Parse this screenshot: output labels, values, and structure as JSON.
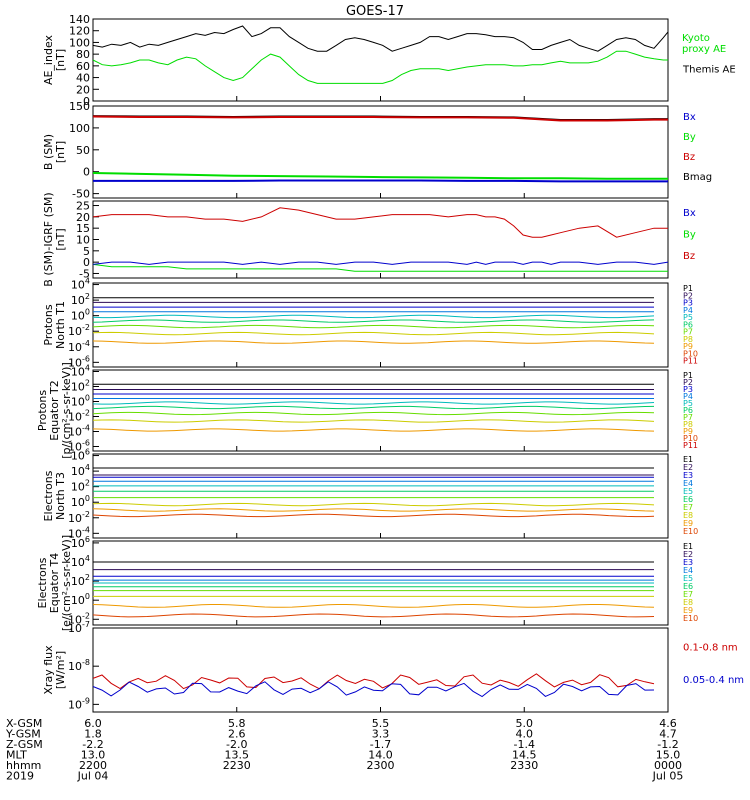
{
  "title": "GOES-17",
  "colors": {
    "black": "#000000",
    "green": "#00dd00",
    "red": "#cc0000",
    "blue": "#0000cc",
    "ch": [
      "#000000",
      "#2b0a55",
      "#0000cc",
      "#0077dd",
      "#00bbbb",
      "#00cc66",
      "#66dd00",
      "#cccc00",
      "#ee9900",
      "#dd4400",
      "#cc0000"
    ]
  },
  "chart_data": [
    {
      "panel": "ae",
      "type": "line",
      "ylabel": [
        "AE_index",
        "[nT]"
      ],
      "yticks": [
        0,
        20,
        40,
        60,
        80,
        100,
        120,
        140
      ],
      "ylim": [
        0,
        140
      ],
      "legend": [
        {
          "text": [
            "Kyoto",
            "proxy AE"
          ],
          "color": "#00dd00"
        },
        {
          "text": [
            "Themis AE"
          ],
          "color": "#000000"
        }
      ],
      "x": [
        0,
        10,
        20,
        30,
        40,
        50,
        60,
        70,
        80,
        90,
        100,
        110,
        120,
        130,
        140,
        150,
        160,
        170,
        180,
        190,
        200,
        210,
        220,
        230,
        240,
        250,
        260,
        270,
        280,
        290,
        300,
        310,
        320,
        330,
        340,
        350,
        360,
        370,
        380,
        390,
        400,
        410,
        420,
        430,
        440,
        450,
        460,
        470,
        480,
        490,
        500,
        510,
        520,
        530,
        540,
        550,
        560,
        570,
        580,
        590,
        600,
        610,
        615
      ],
      "series": [
        {
          "name": "Themis AE",
          "color": "#000000",
          "values": [
            95,
            92,
            97,
            95,
            100,
            92,
            97,
            95,
            100,
            105,
            110,
            115,
            112,
            117,
            115,
            122,
            128,
            110,
            115,
            125,
            125,
            110,
            100,
            90,
            85,
            85,
            95,
            105,
            108,
            105,
            100,
            95,
            85,
            90,
            95,
            100,
            110,
            110,
            105,
            110,
            115,
            115,
            113,
            110,
            110,
            108,
            100,
            88,
            88,
            95,
            100,
            105,
            95,
            90,
            85,
            95,
            105,
            108,
            105,
            95,
            90,
            108,
            118
          ]
        },
        {
          "name": "Kyoto proxy AE",
          "color": "#00dd00",
          "values": [
            70,
            62,
            60,
            62,
            65,
            70,
            70,
            65,
            62,
            70,
            75,
            72,
            60,
            50,
            40,
            35,
            40,
            55,
            70,
            80,
            75,
            60,
            45,
            35,
            30,
            30,
            30,
            30,
            30,
            30,
            30,
            30,
            35,
            45,
            52,
            55,
            55,
            55,
            52,
            55,
            58,
            60,
            62,
            62,
            62,
            60,
            60,
            62,
            62,
            65,
            68,
            65,
            65,
            65,
            68,
            75,
            85,
            85,
            80,
            75,
            72,
            70,
            70
          ]
        }
      ]
    },
    {
      "panel": "b",
      "type": "line",
      "ylabel": [
        "B (SM)",
        "[nT]"
      ],
      "yticks": [
        -50,
        0,
        50,
        100,
        150
      ],
      "ylim": [
        -60,
        150
      ],
      "legend": [
        {
          "text": [
            "Bx"
          ],
          "color": "#0000cc"
        },
        {
          "text": [
            "By"
          ],
          "color": "#00dd00"
        },
        {
          "text": [
            "Bz"
          ],
          "color": "#cc0000"
        },
        {
          "text": [
            "Bmag"
          ],
          "color": "#000000"
        }
      ],
      "x": [
        0,
        50,
        100,
        150,
        200,
        250,
        300,
        350,
        400,
        450,
        500,
        550,
        600,
        615
      ],
      "series": [
        {
          "name": "Bmag",
          "color": "#000000",
          "values": [
            127,
            126,
            126,
            125,
            126,
            126,
            126,
            125,
            125,
            124,
            118,
            118,
            120,
            120
          ]
        },
        {
          "name": "Bz",
          "color": "#cc0000",
          "values": [
            126,
            125,
            125,
            124,
            125,
            125,
            125,
            124,
            124,
            123,
            117,
            117,
            119,
            119
          ]
        },
        {
          "name": "By",
          "color": "#00dd00",
          "values": [
            -3,
            -5,
            -7,
            -9,
            -10,
            -11,
            -12,
            -13,
            -14,
            -15,
            -15,
            -16,
            -16,
            -16
          ]
        },
        {
          "name": "Bx",
          "color": "#0000cc",
          "values": [
            -21,
            -21,
            -21,
            -21,
            -20,
            -20,
            -20,
            -20,
            -21,
            -21,
            -22,
            -22,
            -22,
            -22
          ]
        }
      ]
    },
    {
      "panel": "bigrf",
      "type": "line",
      "ylabel": [
        "B (SM)-IGRF (SM)",
        "[nT]"
      ],
      "yticks": [
        -5,
        0,
        5,
        10,
        15,
        20,
        25
      ],
      "ylim": [
        -7,
        27
      ],
      "legend": [
        {
          "text": [
            "Bx"
          ],
          "color": "#0000cc"
        },
        {
          "text": [
            "By"
          ],
          "color": "#00dd00"
        },
        {
          "text": [
            "Bz"
          ],
          "color": "#cc0000"
        }
      ],
      "x": [
        0,
        20,
        40,
        60,
        80,
        100,
        120,
        140,
        160,
        180,
        200,
        220,
        240,
        260,
        280,
        300,
        320,
        340,
        360,
        380,
        400,
        410,
        420,
        430,
        440,
        450,
        460,
        470,
        480,
        490,
        500,
        520,
        540,
        560,
        580,
        600,
        615
      ],
      "series": [
        {
          "name": "Bz",
          "color": "#cc0000",
          "values": [
            20,
            21,
            21,
            21,
            20,
            20,
            19,
            19,
            18,
            20,
            24,
            23,
            21,
            19,
            19,
            20,
            21,
            21,
            21,
            20,
            21,
            21,
            20,
            20,
            19,
            16,
            12,
            11,
            11,
            12,
            13,
            15,
            16,
            11,
            13,
            15,
            15
          ]
        },
        {
          "name": "By",
          "color": "#00dd00",
          "values": [
            -1,
            -2,
            -2,
            -2,
            -2,
            -3,
            -3,
            -3,
            -3,
            -3,
            -3,
            -3,
            -3,
            -3,
            -4,
            -4,
            -4,
            -4,
            -4,
            -4,
            -4,
            -4,
            -4,
            -4,
            -4,
            -4,
            -4,
            -4,
            -4,
            -4,
            -4,
            -4,
            -4,
            -4,
            -4,
            -4,
            -4
          ]
        },
        {
          "name": "Bx",
          "color": "#0000cc",
          "values": [
            -1,
            0,
            0,
            -1,
            0,
            0,
            0,
            0,
            -1,
            0,
            -1,
            0,
            0,
            -1,
            0,
            0,
            -1,
            0,
            0,
            0,
            -1,
            0,
            -1,
            0,
            0,
            0,
            -1,
            0,
            0,
            -1,
            0,
            0,
            -1,
            0,
            0,
            -1,
            0
          ]
        }
      ]
    },
    {
      "panel": "pn",
      "type": "line",
      "log": true,
      "ylabel": [
        "Protons",
        "North T1"
      ],
      "ytick_exp": [
        4,
        2,
        0,
        -2,
        -4,
        -6
      ],
      "ylim_exp": [
        -6.6,
        4.2
      ],
      "legend": [
        "P1",
        "P2",
        "P3",
        "P4",
        "P5",
        "P6",
        "P7",
        "P8",
        "P9",
        "P10",
        "P11"
      ],
      "levels_exp": [
        2.3,
        1.7,
        1.1,
        0.5,
        -0.1,
        -0.7,
        -1.4,
        -2.3,
        -3.4
      ]
    },
    {
      "panel": "pe",
      "type": "line",
      "log": true,
      "ylabel": [
        "Protons",
        "Equator T2",
        "[p/(cm²-s-sr-keV)]"
      ],
      "ytick_exp": [
        4,
        2,
        0,
        -2,
        -4,
        -6
      ],
      "ylim_exp": [
        -6.6,
        4.2
      ],
      "legend": [
        "P1",
        "P2",
        "P3",
        "P4",
        "P5",
        "P6",
        "P7",
        "P8",
        "P9",
        "P10",
        "P11"
      ],
      "levels_exp": [
        2.3,
        1.6,
        1.0,
        0.4,
        -0.2,
        -0.8,
        -1.6,
        -2.6,
        -3.8
      ]
    },
    {
      "panel": "en",
      "type": "line",
      "log": true,
      "ylabel": [
        "Electrons",
        "North T3"
      ],
      "ytick_exp": [
        6,
        4,
        2,
        0,
        -2,
        -4
      ],
      "ylim_exp": [
        -4.6,
        6.2
      ],
      "legend": [
        "E1",
        "E2",
        "E3",
        "E4",
        "E5",
        "E6",
        "E7",
        "E8",
        "E9",
        "E10"
      ],
      "levels_exp": [
        4.4,
        3.5,
        3.2,
        2.7,
        2.1,
        1.4,
        0.6,
        -0.3,
        -1.0,
        -1.7
      ]
    },
    {
      "panel": "ee",
      "type": "line",
      "log": true,
      "ylabel": [
        "Electrons",
        "Equator T4",
        "[e/(cm²-s-sr-keV)]"
      ],
      "ytick_exp": [
        6,
        4,
        2,
        0,
        -2
      ],
      "ylim_exp": [
        -2.6,
        6.2
      ],
      "legend": [
        "E1",
        "E2",
        "E3",
        "E4",
        "E5",
        "E6",
        "E7",
        "E8",
        "E9",
        "E10"
      ],
      "levels_exp": [
        4.0,
        3.2,
        2.5,
        2.1,
        1.8,
        1.4,
        1.0,
        0.4,
        -0.6,
        -1.6
      ]
    },
    {
      "panel": "xray",
      "type": "line",
      "log": true,
      "ylabel": [
        "Xray flux",
        "[W/m²]"
      ],
      "ytick_exp": [
        -7,
        -8,
        -9
      ],
      "ylim_exp": [
        -9.2,
        -7
      ],
      "legend": [
        {
          "text": [
            "0.1-0.8 nm"
          ],
          "color": "#cc0000"
        },
        {
          "text": [
            "0.05-0.4 nm"
          ],
          "color": "#0000cc"
        }
      ],
      "levels_exp": [
        -8.4,
        -8.6
      ]
    }
  ],
  "x_axis": {
    "rows": [
      {
        "label": "X-GSM",
        "values": [
          "6.0",
          "5.8",
          "5.5",
          "5.0",
          "4.6"
        ]
      },
      {
        "label": "Y-GSM",
        "values": [
          "1.8",
          "2.6",
          "3.3",
          "4.0",
          "4.7"
        ]
      },
      {
        "label": "Z-GSM",
        "values": [
          "-2.2",
          "-2.0",
          "-1.7",
          "-1.4",
          "-1.2"
        ]
      },
      {
        "label": "MLT",
        "values": [
          "13.0",
          "13.5",
          "14.0",
          "14.5",
          "15.0"
        ]
      },
      {
        "label": "hhmm",
        "values": [
          "2200",
          "2230",
          "2300",
          "2330",
          "0000"
        ]
      },
      {
        "label": "2019",
        "values": [
          "Jul 04",
          "",
          "",
          "",
          "Jul 05"
        ]
      }
    ]
  }
}
